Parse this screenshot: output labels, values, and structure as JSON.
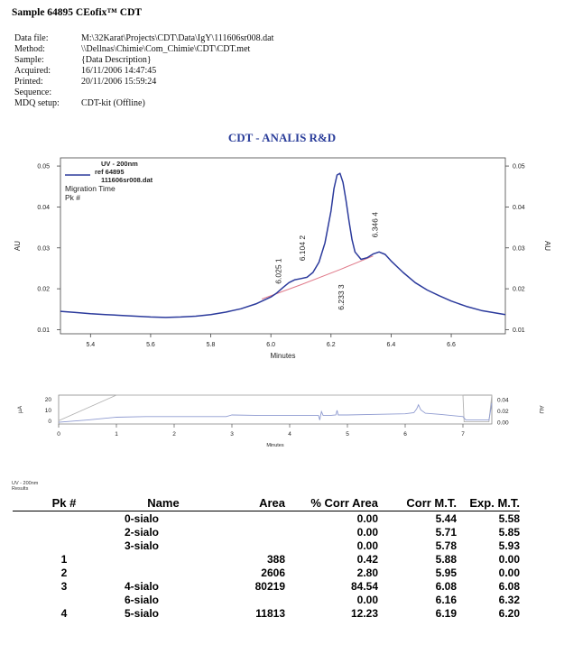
{
  "header": {
    "title": "Sample 64895 CEofix™ CDT",
    "fields": [
      {
        "key": "Data file:",
        "value": "M:\\32Karat\\Projects\\CDT\\Data\\IgY\\111606sr008.dat"
      },
      {
        "key": " Method:",
        "value": "\\\\Dellnas\\Chimie\\Com_Chimie\\CDT\\CDT.met"
      },
      {
        "key": " Sample:",
        "value": "{Data Description}"
      },
      {
        "key": "Acquired:",
        "value": "16/11/2006 14:47:45"
      },
      {
        "key": "Printed:",
        "value": "20/11/2006 15:59:24"
      },
      {
        "key": "Sequence:",
        "value": ""
      },
      {
        "key": "MDQ setup:",
        "value": "CDT-kit (Offline)"
      }
    ]
  },
  "colors": {
    "trace": "#2b3a9c",
    "baseline": "#e07a8a",
    "title": "#2a3d9a",
    "lower_trace": "#8f9bd0"
  },
  "chart_data": [
    {
      "type": "line",
      "title": "CDT - ANALIS R&D",
      "xlabel": "Minutes",
      "ylabel_left": "AU",
      "ylabel_right": "AU",
      "xlim": [
        5.3,
        6.78
      ],
      "ylim": [
        0.009,
        0.052
      ],
      "x_ticks": [
        "5.4",
        "5.6",
        "5.8",
        "6.0",
        "6.2",
        "6.4",
        "6.6"
      ],
      "x_tick_values": [
        5.4,
        5.6,
        5.8,
        6.0,
        6.2,
        6.4,
        6.6
      ],
      "y_ticks": [
        "0.01",
        "0.02",
        "0.03",
        "0.04",
        "0.05"
      ],
      "y_tick_values": [
        0.01,
        0.02,
        0.03,
        0.04,
        0.05
      ],
      "legend": {
        "lines": [
          "UV - 200nm",
          "ref 64895",
          "111606sr008.dat"
        ],
        "extra": [
          "Migration Time",
          "Pk #"
        ],
        "placement": "top-left"
      },
      "series": [
        {
          "name": "UV - 200nm",
          "x": [
            5.3,
            5.35,
            5.4,
            5.45,
            5.5,
            5.55,
            5.6,
            5.65,
            5.7,
            5.75,
            5.8,
            5.85,
            5.9,
            5.95,
            6.0,
            6.02,
            6.04,
            6.06,
            6.08,
            6.1,
            6.12,
            6.14,
            6.16,
            6.18,
            6.2,
            6.21,
            6.22,
            6.23,
            6.24,
            6.25,
            6.26,
            6.27,
            6.28,
            6.3,
            6.32,
            6.34,
            6.36,
            6.38,
            6.4,
            6.44,
            6.48,
            6.52,
            6.56,
            6.6,
            6.65,
            6.7,
            6.78
          ],
          "y": [
            0.0145,
            0.0142,
            0.0139,
            0.0137,
            0.0135,
            0.0133,
            0.0131,
            0.013,
            0.0131,
            0.0133,
            0.0137,
            0.0143,
            0.0151,
            0.0163,
            0.018,
            0.019,
            0.0203,
            0.0215,
            0.0222,
            0.0225,
            0.0228,
            0.024,
            0.0265,
            0.0312,
            0.039,
            0.0445,
            0.0478,
            0.0482,
            0.046,
            0.0415,
            0.0365,
            0.032,
            0.029,
            0.0272,
            0.0276,
            0.0285,
            0.029,
            0.0284,
            0.0268,
            0.024,
            0.0215,
            0.0197,
            0.0183,
            0.017,
            0.0157,
            0.0147,
            0.0137
          ]
        },
        {
          "name": "baseline",
          "x": [
            5.97,
            6.1,
            6.23,
            6.34
          ],
          "y": [
            0.0175,
            0.021,
            0.0247,
            0.028
          ]
        }
      ],
      "peak_labels": [
        {
          "text": "6.025  1",
          "x": 6.025,
          "y": 0.0212
        },
        {
          "text": "6.104  2",
          "x": 6.104,
          "y": 0.0268
        },
        {
          "text": "6.233  3",
          "x": 6.233,
          "y": 0.0148
        },
        {
          "text": "6.346  4",
          "x": 6.346,
          "y": 0.0325
        }
      ]
    },
    {
      "type": "line",
      "xlabel": "Minutes",
      "ylabel_left": "µA",
      "ylabel_right": "AU",
      "xlim": [
        0,
        7.5
      ],
      "x_ticks": [
        "0",
        "1",
        "2",
        "3",
        "4",
        "5",
        "6",
        "7"
      ],
      "x_tick_values": [
        0,
        1,
        2,
        3,
        4,
        5,
        6,
        7
      ],
      "y_left_ticks": [
        "20",
        "10",
        "0"
      ],
      "y_right_ticks": [
        "0.04",
        "0.02",
        "0.00"
      ],
      "ylim_left": [
        -3,
        24
      ],
      "ylim_right": [
        -0.003,
        0.048
      ],
      "series": [
        {
          "name": "current",
          "axis": "left",
          "x": [
            0,
            1.0,
            7.0,
            7.02,
            7.45,
            7.5
          ],
          "y": [
            0,
            24,
            24,
            -1,
            -1,
            24
          ]
        },
        {
          "name": "absorbance",
          "axis": "right",
          "x": [
            0.0,
            0.5,
            1.0,
            1.5,
            2.0,
            2.5,
            2.9,
            3.0,
            3.5,
            4.0,
            4.5,
            4.52,
            4.55,
            4.58,
            4.7,
            4.8,
            4.82,
            4.84,
            5.0,
            5.5,
            6.0,
            6.15,
            6.2,
            6.23,
            6.27,
            6.35,
            6.6,
            7.0,
            7.05,
            7.45,
            7.5
          ],
          "y": [
            0.0,
            0.004,
            0.009,
            0.01,
            0.01,
            0.01,
            0.01,
            0.013,
            0.012,
            0.012,
            0.012,
            0.004,
            0.019,
            0.012,
            0.012,
            0.013,
            0.021,
            0.013,
            0.013,
            0.014,
            0.015,
            0.017,
            0.024,
            0.031,
            0.022,
            0.016,
            0.014,
            0.01,
            0.004,
            0.004,
            0.034
          ]
        }
      ]
    }
  ],
  "results": {
    "heading_lines": [
      "UV - 200nm",
      "Results"
    ],
    "columns": [
      "Pk #",
      "Name",
      "Area",
      "% Corr Area",
      "Corr M.T.",
      "Exp. M.T."
    ],
    "rows": [
      [
        "",
        "0-sialo",
        "",
        "0.00",
        "5.44",
        "5.58"
      ],
      [
        "",
        "2-sialo",
        "",
        "0.00",
        "5.71",
        "5.85"
      ],
      [
        "",
        "3-sialo",
        "",
        "0.00",
        "5.78",
        "5.93"
      ],
      [
        "1",
        "",
        "388",
        "0.42",
        "5.88",
        "0.00"
      ],
      [
        "2",
        "",
        "2606",
        "2.80",
        "5.95",
        "0.00"
      ],
      [
        "3",
        "4-sialo",
        "80219",
        "84.54",
        "6.08",
        "6.08"
      ],
      [
        "",
        "6-sialo",
        "",
        "0.00",
        "6.16",
        "6.32"
      ],
      [
        "4",
        "5-sialo",
        "11813",
        "12.23",
        "6.19",
        "6.20"
      ]
    ]
  }
}
